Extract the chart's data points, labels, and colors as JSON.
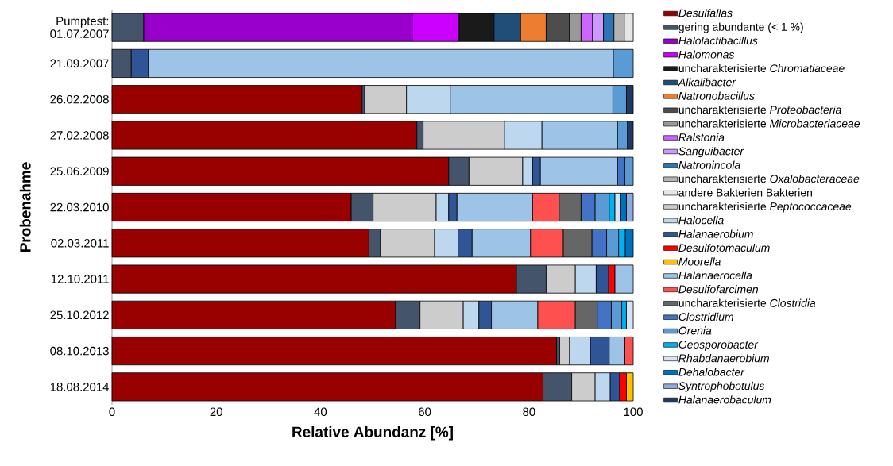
{
  "chart_data": {
    "type": "bar",
    "orientation": "horizontal",
    "stacked": true,
    "xlabel": "Relative Abundanz [%]",
    "ylabel": "Probenahme",
    "categories": [
      "Pumptest: 01.07.2007",
      "21.09.2007",
      "26.02.2008",
      "27.02.2008",
      "25.06.2009",
      "22.03.2010",
      "02.03.2011",
      "12.10.2011",
      "25.10.2012",
      "08.10.2013",
      "18.08.2014"
    ],
    "xlim": [
      0,
      100
    ],
    "xticks": [
      0,
      20,
      40,
      60,
      80,
      100
    ],
    "grid": false,
    "legend": "right",
    "series": [
      {
        "name": "*Desulfallas*",
        "color": "#990000",
        "values": [
          null,
          null,
          48.0,
          58.5,
          64.6,
          45.9,
          49.3,
          77.6,
          54.4,
          85.3,
          82.7
        ]
      },
      {
        "name": "gering abundante (< 1 %)",
        "color": "#44546a",
        "values": [
          6.1,
          3.7,
          0.5,
          1.2,
          3.9,
          4.2,
          2.2,
          5.7,
          4.7,
          0.6,
          5.5
        ]
      },
      {
        "name": "*Halolactibacillus*",
        "color": "#9900cc",
        "values": [
          51.5,
          null,
          null,
          null,
          null,
          null,
          null,
          null,
          null,
          null,
          null
        ]
      },
      {
        "name": "*Halomonas*",
        "color": "#cc00ff",
        "values": [
          9.0,
          null,
          null,
          null,
          null,
          null,
          null,
          null,
          null,
          null,
          null
        ]
      },
      {
        "name": "uncharakterisierte *Chromatiaceae*",
        "color": "#1a1a1a",
        "values": [
          6.7,
          null,
          null,
          null,
          null,
          null,
          null,
          null,
          null,
          null,
          null
        ]
      },
      {
        "name": "*Alkalibacter*",
        "color": "#1f4e79",
        "values": [
          5.1,
          null,
          null,
          null,
          null,
          null,
          null,
          null,
          null,
          null,
          null
        ]
      },
      {
        "name": "*Natronobacillus*",
        "color": "#ed7d31",
        "values": [
          4.9,
          null,
          null,
          null,
          null,
          null,
          null,
          null,
          null,
          null,
          null
        ]
      },
      {
        "name": "uncharakterisierte *Proteobacteria*",
        "color": "#4d4d4d",
        "values": [
          4.5,
          null,
          null,
          null,
          null,
          null,
          null,
          null,
          null,
          null,
          null
        ]
      },
      {
        "name": "uncharakterisierte *Microbacteriaceae*",
        "color": "#999999",
        "values": [
          2.2,
          null,
          null,
          null,
          null,
          null,
          null,
          null,
          null,
          null,
          null
        ]
      },
      {
        "name": "*Ralstonia*",
        "color": "#cc66ff",
        "values": [
          2.2,
          null,
          null,
          null,
          null,
          null,
          null,
          null,
          null,
          null,
          null
        ]
      },
      {
        "name": "*Sanguibacter*",
        "color": "#cc99ff",
        "values": [
          2.1,
          null,
          null,
          null,
          null,
          null,
          null,
          null,
          null,
          null,
          null
        ]
      },
      {
        "name": "*Natronincola*",
        "color": "#2e75b6",
        "values": [
          2.0,
          null,
          null,
          null,
          null,
          null,
          null,
          null,
          null,
          null,
          null
        ]
      },
      {
        "name": "uncharakterisierte *Oxalobacteraceae*",
        "color": "#b3b3b3",
        "values": [
          2.0,
          null,
          null,
          null,
          null,
          null,
          null,
          null,
          null,
          null,
          null
        ]
      },
      {
        "name": "andere Bakterien Bakterien",
        "color": "#e6e6e6",
        "values": [
          1.7,
          null,
          null,
          null,
          null,
          null,
          null,
          null,
          null,
          null,
          null
        ]
      },
      {
        "name": "uncharakterisierte *Peptococcaceae*",
        "color": "#cccccc",
        "values": [
          null,
          null,
          8.0,
          15.6,
          10.3,
          12.1,
          10.4,
          5.6,
          8.3,
          1.9,
          4.5
        ]
      },
      {
        "name": "*Halocella*",
        "color": "#bdd7ee",
        "values": [
          null,
          null,
          8.4,
          7.2,
          1.9,
          2.4,
          4.5,
          4.0,
          3.0,
          4.0,
          2.9
        ]
      },
      {
        "name": "*Halanaerobium*",
        "color": "#2f5597",
        "values": [
          null,
          3.3,
          null,
          null,
          1.5,
          1.6,
          2.7,
          2.4,
          2.4,
          3.6,
          1.8
        ]
      },
      {
        "name": "*Desulfotomaculum*",
        "color": "#ff0000",
        "values": [
          null,
          null,
          null,
          null,
          null,
          null,
          null,
          1.2,
          null,
          null,
          1.3
        ]
      },
      {
        "name": "*Moorella*",
        "color": "#ffc000",
        "values": [
          null,
          null,
          null,
          null,
          null,
          null,
          null,
          null,
          null,
          null,
          1.3
        ]
      },
      {
        "name": "*Halanaerocella*",
        "color": "#9dc3e6",
        "values": [
          null,
          89.2,
          31.2,
          14.5,
          14.8,
          14.5,
          11.2,
          3.5,
          8.9,
          3.0,
          null
        ]
      },
      {
        "name": "*Desulfofarcimen*",
        "color": "#ff5050",
        "values": [
          null,
          null,
          null,
          null,
          null,
          5.1,
          6.3,
          null,
          7.2,
          1.6,
          null
        ]
      },
      {
        "name": "uncharakterisierte *Clostridia*",
        "color": "#666666",
        "values": [
          null,
          null,
          null,
          null,
          null,
          4.2,
          5.5,
          null,
          4.2,
          null,
          null
        ]
      },
      {
        "name": "*Clostridium*",
        "color": "#4472c4",
        "values": [
          null,
          null,
          null,
          null,
          1.4,
          2.7,
          2.8,
          null,
          2.7,
          null,
          null
        ]
      },
      {
        "name": "*Orenia*",
        "color": "#5b9bd5",
        "values": [
          null,
          3.8,
          2.6,
          1.9,
          1.6,
          2.7,
          2.3,
          null,
          2.0,
          null,
          null
        ]
      },
      {
        "name": "*Geosporobacter*",
        "color": "#00b0f0",
        "values": [
          null,
          null,
          null,
          null,
          null,
          1.1,
          1.3,
          null,
          0.9,
          null,
          null
        ]
      },
      {
        "name": "*Rhabdanaerobium*",
        "color": "#dae3f3",
        "values": [
          null,
          null,
          null,
          null,
          null,
          1.1,
          null,
          null,
          1.3,
          null,
          null
        ]
      },
      {
        "name": "*Dehalobacter*",
        "color": "#0070c0",
        "values": [
          null,
          null,
          null,
          null,
          null,
          1.1,
          1.5,
          null,
          null,
          null,
          null
        ]
      },
      {
        "name": "*Syntrophobotulus*",
        "color": "#8faadc",
        "values": [
          null,
          null,
          null,
          null,
          null,
          1.3,
          null,
          null,
          null,
          null,
          null
        ]
      },
      {
        "name": "*Halanaerobaculum*",
        "color": "#203864",
        "values": [
          null,
          null,
          1.3,
          1.1,
          null,
          null,
          null,
          null,
          null,
          null,
          null
        ]
      }
    ]
  }
}
